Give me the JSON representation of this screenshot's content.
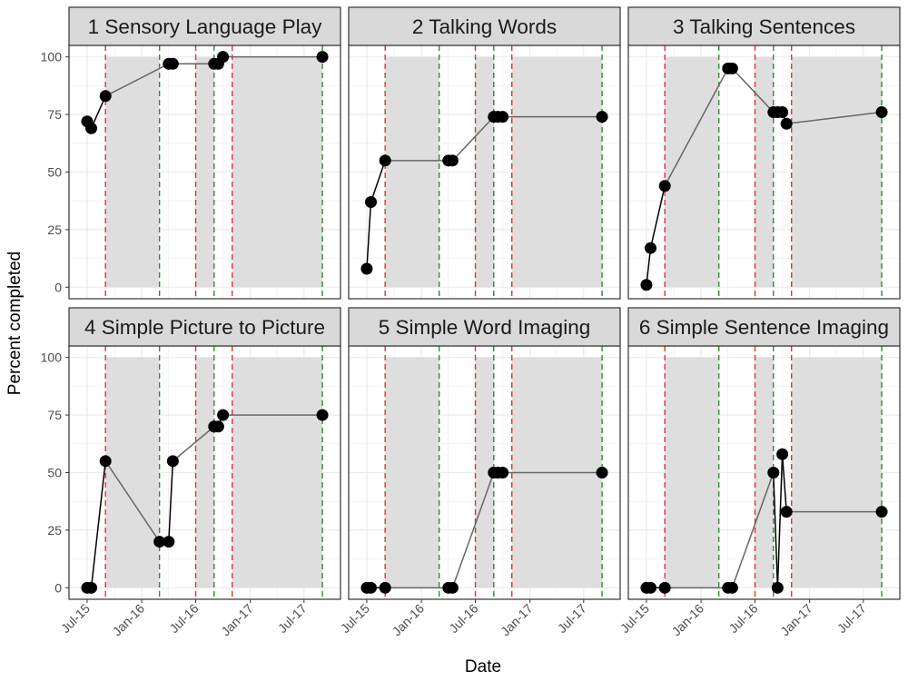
{
  "figure": {
    "xlabel": "Date",
    "ylabel": "Percent completed",
    "x_ticks": [
      "Jul-15",
      "Jan-16",
      "Jul-16",
      "Jan-17",
      "Jul-17"
    ],
    "y_ticks": [
      0,
      25,
      50,
      75,
      100
    ]
  },
  "colors": {
    "background": "#ffffff",
    "strip_fill": "#d9d9d9",
    "panel_border": "#333333",
    "grid": "#ebebeb",
    "shade": "#dedede",
    "red_line": "#e0332e",
    "green_line": "#2e8b2e",
    "point": "#000000",
    "line_black": "#000000",
    "line_grey": "#666666"
  },
  "chart_data": {
    "type": "line",
    "facet_layout": "2 rows x 3 columns",
    "xlabel": "Date",
    "ylabel": "Percent completed",
    "xlim": [
      "2015-05-01",
      "2017-11-01"
    ],
    "ylim": [
      -5,
      105
    ],
    "grid": true,
    "x_ticks": [
      "2015-07-01",
      "2016-01-01",
      "2016-07-01",
      "2017-01-01",
      "2017-07-01"
    ],
    "red_dashed_lines": [
      "2015-09-01",
      "2016-07-01",
      "2016-11-01"
    ],
    "green_dashed_lines": [
      "2016-03-01",
      "2016-09-01",
      "2017-09-01"
    ],
    "shaded_ranges": [
      [
        "2015-09-01",
        "2016-03-01"
      ],
      [
        "2016-07-01",
        "2016-09-01"
      ],
      [
        "2016-11-01",
        "2017-09-01"
      ]
    ],
    "panels": [
      {
        "title": "1 Sensory Language Play",
        "points": [
          [
            "2015-07-01",
            72
          ],
          [
            "2015-07-15",
            69
          ],
          [
            "2015-09-01",
            83
          ],
          [
            "2016-04-01",
            97
          ],
          [
            "2016-04-15",
            97
          ],
          [
            "2016-09-01",
            97
          ],
          [
            "2016-09-15",
            97
          ],
          [
            "2016-10-01",
            100
          ],
          [
            "2017-09-01",
            100
          ]
        ]
      },
      {
        "title": "2 Talking Words",
        "points": [
          [
            "2015-07-01",
            8
          ],
          [
            "2015-07-15",
            37
          ],
          [
            "2015-09-01",
            55
          ],
          [
            "2016-04-01",
            55
          ],
          [
            "2016-04-15",
            55
          ],
          [
            "2016-09-01",
            74
          ],
          [
            "2016-09-15",
            74
          ],
          [
            "2016-10-01",
            74
          ],
          [
            "2017-09-01",
            74
          ]
        ]
      },
      {
        "title": "3 Talking Sentences",
        "points": [
          [
            "2015-07-01",
            1
          ],
          [
            "2015-07-15",
            17
          ],
          [
            "2015-09-01",
            44
          ],
          [
            "2016-04-01",
            95
          ],
          [
            "2016-04-15",
            95
          ],
          [
            "2016-09-01",
            76
          ],
          [
            "2016-09-15",
            76
          ],
          [
            "2016-10-01",
            76
          ],
          [
            "2016-10-15",
            71
          ],
          [
            "2017-09-01",
            76
          ]
        ]
      },
      {
        "title": "4 Simple Picture to Picture",
        "points": [
          [
            "2015-07-01",
            0
          ],
          [
            "2015-07-15",
            0
          ],
          [
            "2015-09-01",
            55
          ],
          [
            "2016-03-01",
            20
          ],
          [
            "2016-04-01",
            20
          ],
          [
            "2016-04-15",
            55
          ],
          [
            "2016-09-01",
            70
          ],
          [
            "2016-09-15",
            70
          ],
          [
            "2016-10-01",
            75
          ],
          [
            "2017-09-01",
            75
          ]
        ]
      },
      {
        "title": "5 Simple Word Imaging",
        "points": [
          [
            "2015-07-01",
            0
          ],
          [
            "2015-07-15",
            0
          ],
          [
            "2015-09-01",
            0
          ],
          [
            "2016-04-01",
            0
          ],
          [
            "2016-04-15",
            0
          ],
          [
            "2016-09-01",
            50
          ],
          [
            "2016-09-15",
            50
          ],
          [
            "2016-10-01",
            50
          ],
          [
            "2017-09-01",
            50
          ]
        ]
      },
      {
        "title": "6 Simple Sentence Imaging",
        "points": [
          [
            "2015-07-01",
            0
          ],
          [
            "2015-07-15",
            0
          ],
          [
            "2015-09-01",
            0
          ],
          [
            "2016-04-01",
            0
          ],
          [
            "2016-04-15",
            0
          ],
          [
            "2016-09-01",
            50
          ],
          [
            "2016-09-15",
            0
          ],
          [
            "2016-10-01",
            58
          ],
          [
            "2016-10-15",
            33
          ],
          [
            "2017-09-01",
            33
          ]
        ]
      }
    ]
  }
}
